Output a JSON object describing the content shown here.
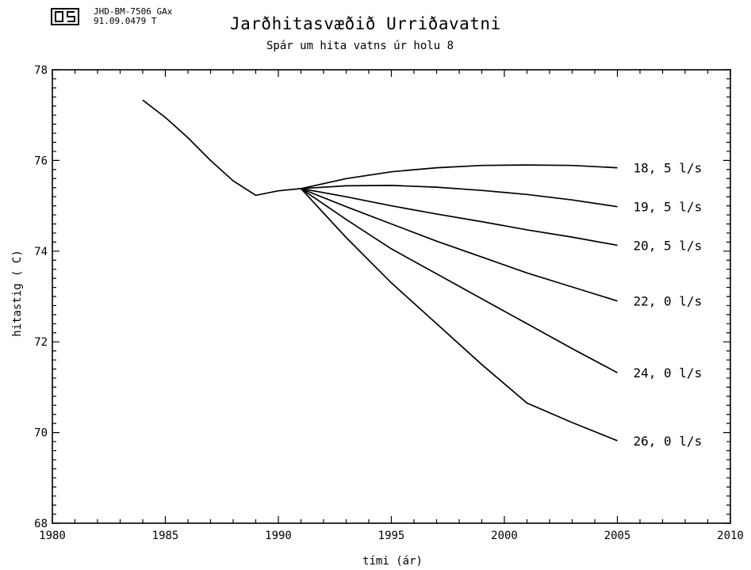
{
  "header": {
    "code_line1": "JHD-BM-7506 GAx",
    "code_line2": "91.09.0479  T"
  },
  "chart_data": {
    "type": "line",
    "title": "Jarðhitasvæðið Urriðavatni",
    "subtitle": "Spár um hita vatns úr holu 8",
    "xlabel": "tími  (ár)",
    "ylabel": "hitastig  ( C)",
    "xlim": [
      1980,
      2010
    ],
    "ylim": [
      68,
      78
    ],
    "xticks": [
      1980,
      1985,
      1990,
      1995,
      2000,
      2005,
      2010
    ],
    "yticks": [
      68,
      70,
      72,
      74,
      76,
      78
    ],
    "grid": false,
    "legend": "none",
    "history": {
      "x": [
        1984,
        1985,
        1986,
        1987,
        1988,
        1989,
        1990,
        1991
      ],
      "y": [
        77.33,
        76.95,
        76.5,
        76.0,
        75.55,
        75.23,
        75.33,
        75.38
      ]
    },
    "series": [
      {
        "name": "18, 5 l/s",
        "x": [
          1991,
          1993,
          1995,
          1997,
          1999,
          2001,
          2003,
          2005
        ],
        "y": [
          75.38,
          75.6,
          75.75,
          75.84,
          75.89,
          75.9,
          75.89,
          75.84
        ]
      },
      {
        "name": "19, 5 l/s",
        "x": [
          1991,
          1993,
          1995,
          1997,
          1999,
          2001,
          2003,
          2005
        ],
        "y": [
          75.38,
          75.44,
          75.45,
          75.41,
          75.34,
          75.25,
          75.13,
          74.98
        ]
      },
      {
        "name": "20, 5 l/s",
        "x": [
          1991,
          1993,
          1995,
          1997,
          1999,
          2001,
          2003,
          2005
        ],
        "y": [
          75.38,
          75.2,
          75.0,
          74.82,
          74.65,
          74.47,
          74.31,
          74.13
        ]
      },
      {
        "name": "22, 0 l/s",
        "x": [
          1991,
          1993,
          1995,
          1997,
          1999,
          2001,
          2003,
          2005
        ],
        "y": [
          75.38,
          74.98,
          74.6,
          74.22,
          73.87,
          73.52,
          73.21,
          72.9
        ]
      },
      {
        "name": "24, 0 l/s",
        "x": [
          1991,
          1993,
          1995,
          1997,
          1999,
          2001,
          2003,
          2005
        ],
        "y": [
          75.38,
          74.7,
          74.05,
          73.5,
          72.95,
          72.4,
          71.85,
          71.32
        ]
      },
      {
        "name": "26, 0 l/s",
        "x": [
          1991,
          1993,
          1995,
          1997,
          1999,
          2001,
          2003,
          2005
        ],
        "y": [
          75.38,
          74.3,
          73.3,
          72.4,
          71.5,
          70.65,
          70.22,
          69.82
        ]
      }
    ]
  }
}
